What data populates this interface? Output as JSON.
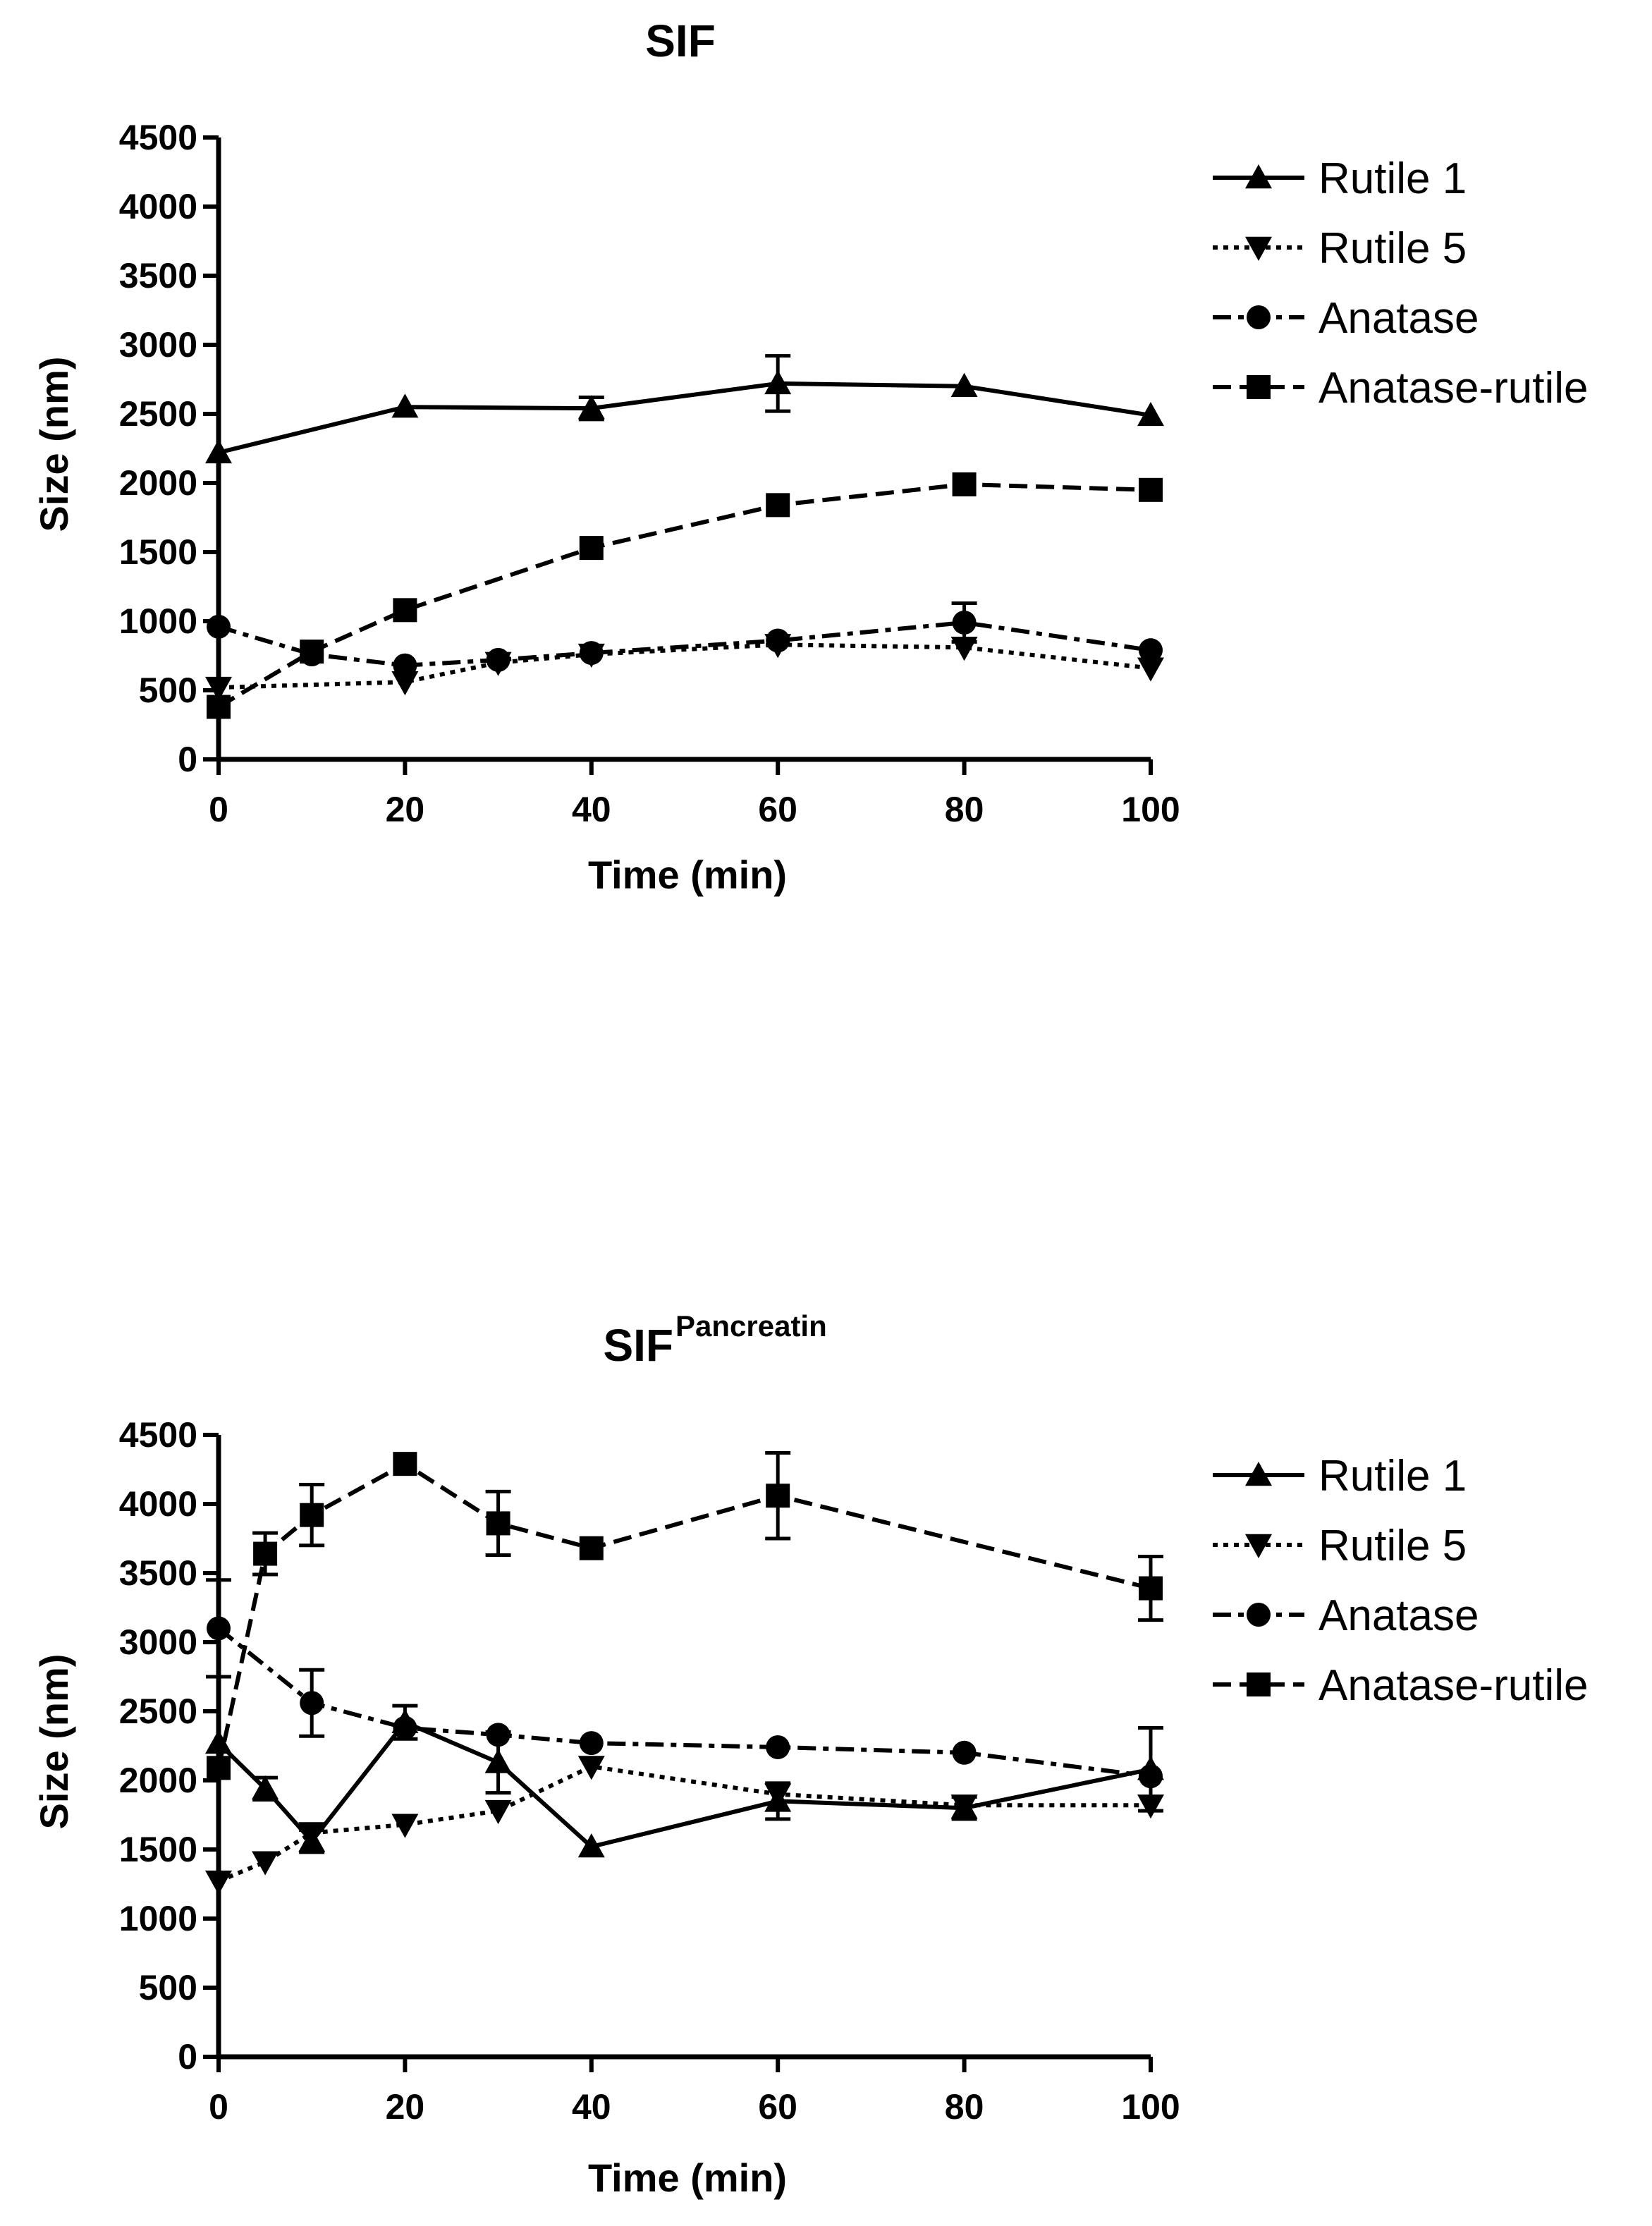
{
  "chart_data": [
    {
      "type": "line",
      "title": "SIF",
      "title_superscript": "",
      "xlabel": "Time (min)",
      "ylabel": "Size (nm)",
      "xlim": [
        0,
        100
      ],
      "ylim": [
        0,
        4500
      ],
      "xticks": [
        0,
        20,
        40,
        60,
        80,
        100
      ],
      "yticks": [
        0,
        500,
        1000,
        1500,
        2000,
        2500,
        3000,
        3500,
        4000,
        4500
      ],
      "legend_position": "top-right",
      "series": [
        {
          "name": "Rutile 1",
          "marker": "triangle-up",
          "dash": "solid",
          "x": [
            0,
            20,
            40,
            60,
            80,
            100
          ],
          "y": [
            2220,
            2550,
            2540,
            2720,
            2700,
            2490
          ],
          "err": [
            0,
            0,
            80,
            200,
            0,
            0
          ]
        },
        {
          "name": "Rutile 5",
          "marker": "triangle-down",
          "dash": "dotted",
          "x": [
            0,
            20,
            30,
            40,
            60,
            80,
            100
          ],
          "y": [
            520,
            560,
            700,
            760,
            830,
            810,
            660
          ],
          "err": [
            0,
            0,
            0,
            0,
            0,
            0,
            0
          ]
        },
        {
          "name": "Anatase",
          "marker": "circle",
          "dash": "dashdot",
          "x": [
            0,
            10,
            20,
            30,
            40,
            60,
            80,
            100
          ],
          "y": [
            960,
            760,
            680,
            720,
            770,
            860,
            990,
            790
          ],
          "err": [
            0,
            0,
            0,
            0,
            0,
            0,
            140,
            0
          ]
        },
        {
          "name": "Anatase-rutile",
          "marker": "square",
          "dash": "dashed",
          "x": [
            0,
            10,
            20,
            40,
            60,
            80,
            100
          ],
          "y": [
            380,
            780,
            1080,
            1530,
            1840,
            1990,
            1950
          ],
          "err": [
            0,
            0,
            0,
            0,
            0,
            0,
            0
          ]
        }
      ]
    },
    {
      "type": "line",
      "title": "SIF",
      "title_superscript": "Pancreatin",
      "xlabel": "Time (min)",
      "ylabel": "Size (nm)",
      "xlim": [
        0,
        100
      ],
      "ylim": [
        0,
        4500
      ],
      "xticks": [
        0,
        20,
        40,
        60,
        80,
        100
      ],
      "yticks": [
        0,
        500,
        1000,
        1500,
        2000,
        2500,
        3000,
        3500,
        4000,
        4500
      ],
      "legend_position": "top-right",
      "series": [
        {
          "name": "Rutile 1",
          "marker": "triangle-up",
          "dash": "solid",
          "x": [
            0,
            5,
            10,
            20,
            30,
            40,
            60,
            80,
            100
          ],
          "y": [
            2270,
            1940,
            1560,
            2420,
            2130,
            1520,
            1850,
            1800,
            2080
          ],
          "err": [
            0,
            80,
            80,
            120,
            220,
            0,
            130,
            80,
            300
          ]
        },
        {
          "name": "Rutile 5",
          "marker": "triangle-down",
          "dash": "dotted",
          "x": [
            0,
            5,
            10,
            20,
            30,
            40,
            60,
            80,
            100
          ],
          "y": [
            1270,
            1410,
            1620,
            1680,
            1780,
            2100,
            1900,
            1820,
            1820
          ],
          "err": [
            0,
            0,
            0,
            0,
            0,
            0,
            0,
            0,
            0
          ]
        },
        {
          "name": "Anatase",
          "marker": "circle",
          "dash": "dashdot",
          "x": [
            0,
            10,
            20,
            30,
            40,
            60,
            80,
            100
          ],
          "y": [
            3100,
            2560,
            2380,
            2330,
            2270,
            2240,
            2200,
            2030
          ],
          "err": [
            350,
            240,
            0,
            0,
            0,
            0,
            0,
            0
          ]
        },
        {
          "name": "Anatase-rutile",
          "marker": "square",
          "dash": "dashed",
          "x": [
            0,
            5,
            10,
            20,
            30,
            40,
            60,
            100
          ],
          "y": [
            2090,
            3640,
            3920,
            4290,
            3860,
            3680,
            4060,
            3390
          ],
          "err": [
            0,
            150,
            220,
            0,
            230,
            0,
            310,
            230
          ]
        }
      ]
    }
  ]
}
